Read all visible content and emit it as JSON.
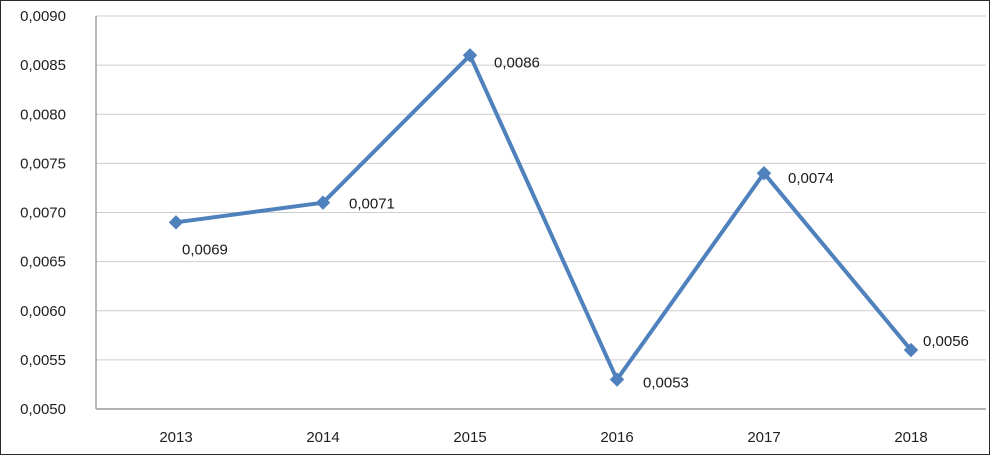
{
  "chart_data": {
    "type": "line",
    "title": "",
    "xlabel": "",
    "ylabel": "",
    "categories": [
      "2013",
      "2014",
      "2015",
      "2016",
      "2017",
      "2018"
    ],
    "values": [
      0.0069,
      0.0071,
      0.0086,
      0.0053,
      0.0074,
      0.0056
    ],
    "point_labels": [
      "0,0069",
      "0,0071",
      "0,0086",
      "0,0053",
      "0,0074",
      "0,0056"
    ],
    "ylim": [
      0.005,
      0.009
    ],
    "y_axis": {
      "ticks": [
        {
          "value": 0.005,
          "label": "0,0050"
        },
        {
          "value": 0.0055,
          "label": "0,0055"
        },
        {
          "value": 0.006,
          "label": "0,0060"
        },
        {
          "value": 0.0065,
          "label": "0,0065"
        },
        {
          "value": 0.007,
          "label": "0,0070"
        },
        {
          "value": 0.0075,
          "label": "0,0075"
        },
        {
          "value": 0.008,
          "label": "0,0080"
        },
        {
          "value": 0.0085,
          "label": "0,0085"
        },
        {
          "value": 0.009,
          "label": "0,0090"
        }
      ]
    },
    "grid": "horizontal",
    "legend": "none",
    "line_color": "#4f81bd",
    "marker": "diamond",
    "decimal_separator": ","
  }
}
